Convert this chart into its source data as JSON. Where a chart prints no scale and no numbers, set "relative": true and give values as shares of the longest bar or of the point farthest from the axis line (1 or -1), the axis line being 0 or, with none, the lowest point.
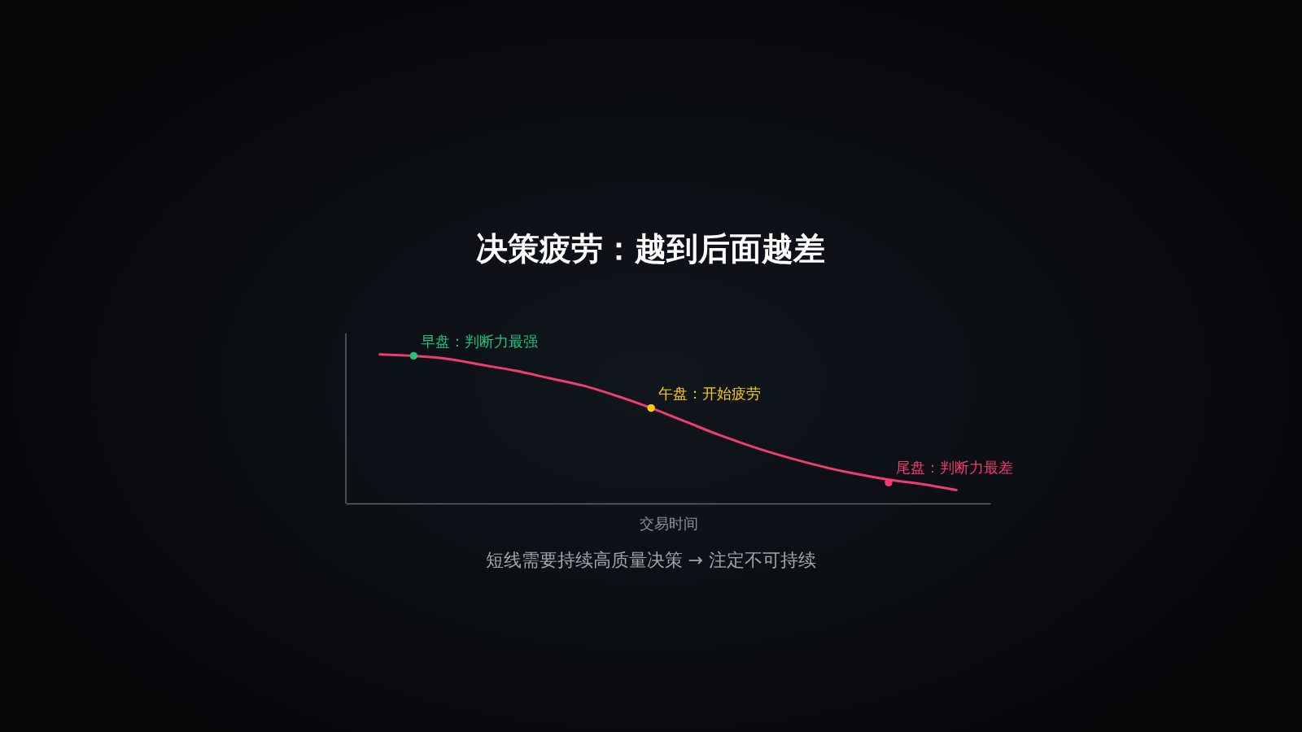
{
  "chart_data": {
    "type": "line",
    "title": "决策疲劳：越到后面越差",
    "xlabel": "交易时间",
    "relative": true,
    "categories": [
      null,
      null,
      null,
      null,
      null,
      null,
      null,
      null,
      null,
      null,
      null,
      null,
      null,
      null,
      null,
      null,
      null,
      null
    ],
    "series": [
      {
        "color": "#ec3f6e",
        "values": [
          1.0,
          0.99,
          0.97,
          0.93,
          0.89,
          0.84,
          0.79,
          0.72,
          0.64,
          0.55,
          0.46,
          0.38,
          0.31,
          0.25,
          0.2,
          0.16,
          0.13,
          0.09
        ]
      },
      {
        "name": "早盘：判断力最强",
        "color": "#22c07a",
        "marker": "circle",
        "values": [
          null,
          0.99,
          null,
          null,
          null,
          null,
          null,
          null,
          null,
          null,
          null,
          null,
          null,
          null,
          null,
          null,
          null,
          null
        ]
      },
      {
        "name": "午盘：开始疲劳",
        "color": "#f7cc15",
        "marker": "circle",
        "values": [
          null,
          null,
          null,
          null,
          null,
          null,
          null,
          null,
          0.64,
          null,
          null,
          null,
          null,
          null,
          null,
          null,
          null,
          null
        ]
      },
      {
        "name": "尾盘：判断力最差",
        "color": "#f23d6b",
        "marker": "circle",
        "values": [
          null,
          null,
          null,
          null,
          null,
          null,
          null,
          null,
          null,
          null,
          null,
          null,
          null,
          null,
          null,
          0.14,
          null,
          null
        ]
      }
    ],
    "annotations": [
      "短线需要持续高质量决策 → 注定不可持续"
    ]
  }
}
